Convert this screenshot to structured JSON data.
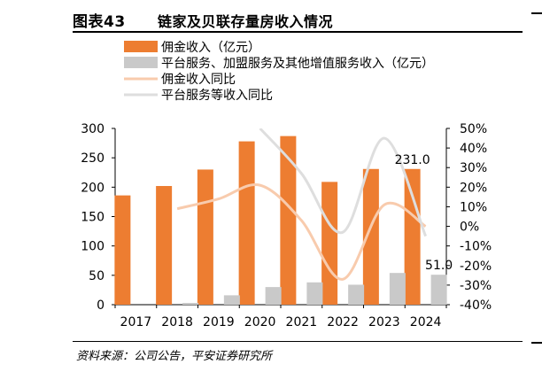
{
  "figure": {
    "label": "图表43",
    "title": "链家及贝联存量房收入情况",
    "source": "资料来源：公司公告，平安证券研究所"
  },
  "colors": {
    "commission_bar": "#ED7D31",
    "platform_bar": "#C9C9C9",
    "commission_line": "#F8CBAD",
    "platform_line": "#DEDEDE"
  },
  "chart_data": {
    "type": "bar",
    "categories": [
      "2017",
      "2018",
      "2019",
      "2020",
      "2021",
      "2022",
      "2023",
      "2024"
    ],
    "series": [
      {
        "name": "佣金收入（亿元）",
        "kind": "bar",
        "axis": "left",
        "values": [
          186,
          202,
          230,
          278,
          287,
          209,
          231,
          231
        ]
      },
      {
        "name": "平台服务、加盟服务及其他增值服务收入（亿元）",
        "kind": "bar",
        "axis": "left",
        "values": [
          0,
          3,
          16,
          30,
          38,
          34,
          54,
          51
        ]
      },
      {
        "name": "佣金收入同比",
        "kind": "line",
        "axis": "right",
        "values": [
          null,
          9,
          14,
          21,
          3,
          -27,
          11,
          0
        ]
      },
      {
        "name": "平台服务等收入同比",
        "kind": "line",
        "axis": "right",
        "values": [
          null,
          null,
          null,
          50,
          27,
          -3,
          45,
          -5
        ]
      }
    ],
    "data_labels": [
      {
        "series": 0,
        "index": 7,
        "text": "231.0"
      },
      {
        "series": 1,
        "index": 7,
        "text": "51.0"
      }
    ],
    "y_left": {
      "lim": [
        0,
        300
      ],
      "ticks": [
        "0",
        "50",
        "100",
        "150",
        "200",
        "250",
        "300"
      ]
    },
    "y_right": {
      "lim": [
        -40,
        50
      ],
      "ticks": [
        "-40%",
        "-30%",
        "-20%",
        "-10%",
        "0%",
        "10%",
        "20%",
        "30%",
        "40%",
        "50%"
      ]
    },
    "grid": false,
    "legend_position": "top-left"
  }
}
